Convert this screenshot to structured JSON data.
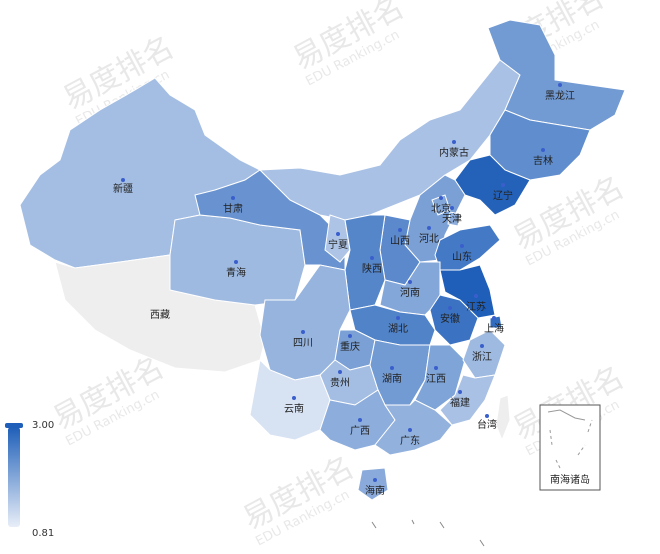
{
  "visual_map": {
    "max_label": "3.00",
    "min_label": "0.81",
    "color_low": "#e8eef8",
    "color_high": "#1f5fb9"
  },
  "inset": {
    "label": "南海诸岛"
  },
  "watermark": {
    "cn": "易度排名",
    "en": "EDU Ranking.cn"
  },
  "provinces": [
    {
      "key": "xinjiang",
      "name": "新疆",
      "value": 1.55
    },
    {
      "key": "xizang",
      "name": "西藏",
      "value": null
    },
    {
      "key": "qinghai",
      "name": "青海",
      "value": 1.6
    },
    {
      "key": "gansu",
      "name": "甘肃",
      "value": 2.2
    },
    {
      "key": "neimenggu",
      "name": "内蒙古",
      "value": 1.5
    },
    {
      "key": "heilongjiang",
      "name": "黑龙江",
      "value": 2.1
    },
    {
      "key": "jilin",
      "name": "吉林",
      "value": 2.3
    },
    {
      "key": "liaoning",
      "name": "辽宁",
      "value": 2.95
    },
    {
      "key": "beijing",
      "name": "北京",
      "value": 1.9
    },
    {
      "key": "tianjin",
      "name": "天津",
      "value": 1.8
    },
    {
      "key": "hebei",
      "name": "河北",
      "value": 2.0
    },
    {
      "key": "shanxi",
      "name": "山西",
      "value": 2.35
    },
    {
      "key": "ningxia",
      "name": "宁夏",
      "value": 1.45
    },
    {
      "key": "shaanxi",
      "name": "陕西",
      "value": 2.4
    },
    {
      "key": "shandong",
      "name": "山东",
      "value": 2.6
    },
    {
      "key": "henan",
      "name": "河南",
      "value": 1.9
    },
    {
      "key": "jiangsu",
      "name": "江苏",
      "value": 3.0
    },
    {
      "key": "anhui",
      "name": "安徽",
      "value": 2.7
    },
    {
      "key": "shanghai",
      "name": "上海",
      "value": 2.8
    },
    {
      "key": "hubei",
      "name": "湖北",
      "value": 2.45
    },
    {
      "key": "sichuan",
      "name": "四川",
      "value": 1.7
    },
    {
      "key": "chongqing",
      "name": "重庆",
      "value": 2.0
    },
    {
      "key": "guizhou",
      "name": "贵州",
      "value": 1.55
    },
    {
      "key": "hunan",
      "name": "湖南",
      "value": 2.1
    },
    {
      "key": "jiangxi",
      "name": "江西",
      "value": 1.95
    },
    {
      "key": "zhejiang",
      "name": "浙江",
      "value": 1.6
    },
    {
      "key": "fujian",
      "name": "福建",
      "value": 1.5
    },
    {
      "key": "yunnan",
      "name": "云南",
      "value": 1.0
    },
    {
      "key": "guangxi",
      "name": "广西",
      "value": 1.8
    },
    {
      "key": "guangdong",
      "name": "广东",
      "value": 1.75
    },
    {
      "key": "taiwan",
      "name": "台湾",
      "value": null
    },
    {
      "key": "hainan",
      "name": "海南",
      "value": 1.85
    }
  ]
}
